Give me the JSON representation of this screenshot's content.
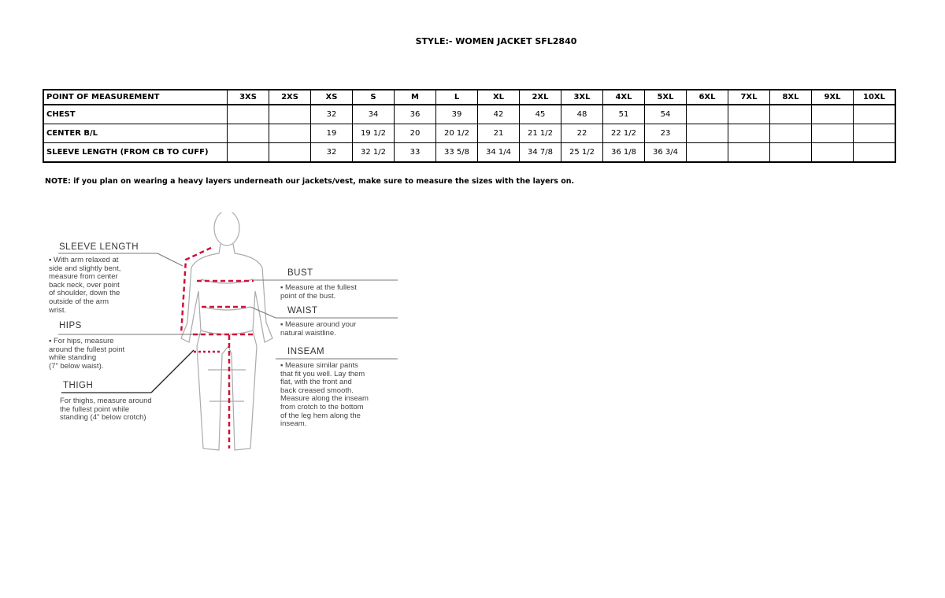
{
  "title": "STYLE:- WOMEN JACKET   SFL2840",
  "table": {
    "headers": [
      "POINT OF MEASUREMENT",
      "3XS",
      "2XS",
      "XS",
      "S",
      "M",
      "L",
      "XL",
      "2XL",
      "3XL",
      "4XL",
      "5XL",
      "6XL",
      "7XL",
      "8XL",
      "9XL",
      "10XL"
    ],
    "rows": [
      [
        "CHEST",
        "",
        "",
        "32",
        "34",
        "36",
        "39",
        "42",
        "45",
        "48",
        "51",
        "54",
        "",
        "",
        "",
        "",
        ""
      ],
      [
        "CENTER B/L",
        "",
        "",
        "19",
        "19 1/2",
        "20",
        "20 1/2",
        "21",
        "21 1/2",
        "22",
        "22 1/2",
        "23",
        "",
        "",
        "",
        "",
        ""
      ],
      [
        "SLEEVE LENGTH (FROM CB TO CUFF)",
        "",
        "",
        "32",
        "32 1/2",
        "33",
        "33 5/8",
        "34 1/4",
        "34 7/8",
        "25 1/2",
        "36 1/8",
        "36 3/4",
        "",
        "",
        "",
        "",
        ""
      ]
    ]
  },
  "note": "NOTE: if you plan on wearing a heavy layers underneath our jackets/vest, make sure to measure the sizes with the layers on.",
  "figure": {
    "sleeve": {
      "heading": "SLEEVE LENGTH",
      "text": "▪ With arm relaxed at\nside and slightly bent,\nmeasure from center\nback neck, over point\nof shoulder, down the\noutside of the arm\nwrist."
    },
    "hips": {
      "heading": "HIPS",
      "text": "▪ For hips, measure\naround the fullest point\nwhile standing\n(7\" below waist)."
    },
    "thigh": {
      "heading": "THIGH",
      "text": "For thighs, measure around\nthe fullest point while\nstanding (4\" below crotch)"
    },
    "bust": {
      "heading": "BUST",
      "text": "▪ Measure at the fullest\npoint of the bust."
    },
    "waist": {
      "heading": "WAIST",
      "text": "▪ Measure around your\nnatural waistline."
    },
    "inseam": {
      "heading": "INSEAM",
      "text": "▪ Measure similar pants\nthat fit you well. Lay them\nflat, with the front and\nback creased smooth.\nMeasure along the inseam\nfrom crotch to the bottom\nof the leg hem along the\ninseam."
    },
    "measure_line_color": "#d0103a"
  }
}
